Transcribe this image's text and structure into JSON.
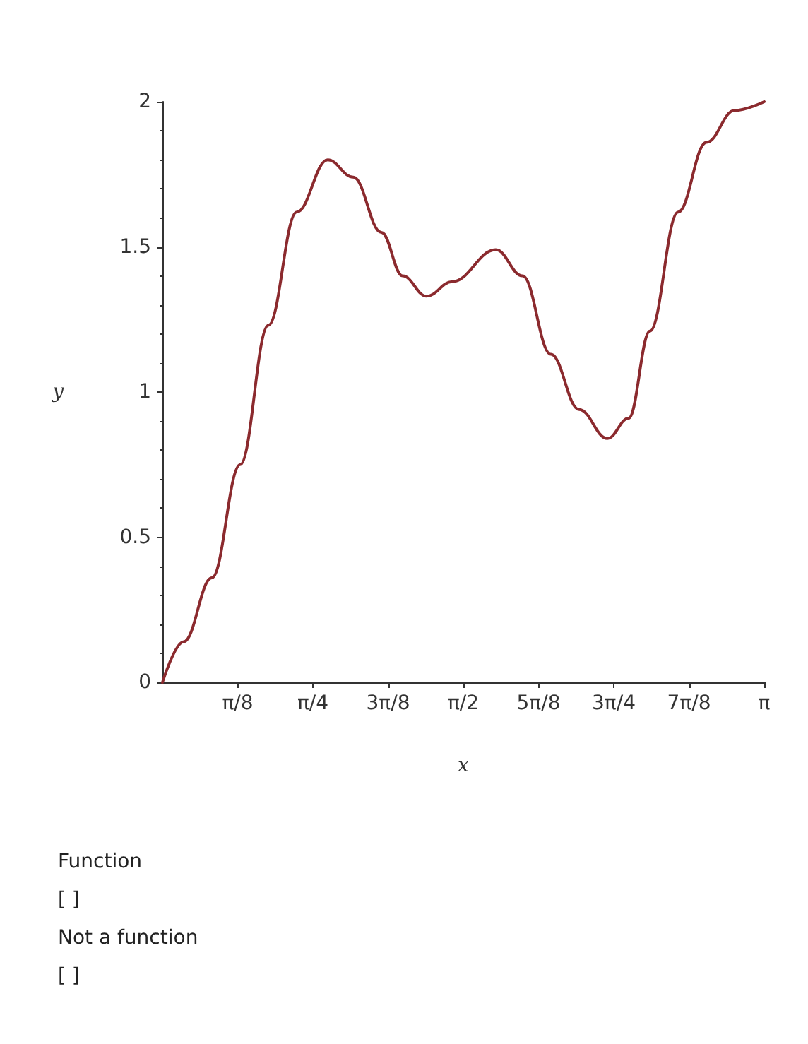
{
  "chart_data": {
    "type": "line",
    "xlabel": "x",
    "ylabel": "y",
    "x": [
      0,
      0.111,
      0.258,
      0.406,
      0.553,
      0.701,
      0.863,
      0.996,
      1.143,
      1.254,
      1.379,
      1.512,
      1.74,
      1.88,
      2.028,
      2.175,
      2.323,
      2.434,
      2.545,
      2.692,
      2.84,
      2.987,
      3.1416
    ],
    "series": [
      {
        "color": "#8b2a2e",
        "values": [
          0,
          0.14,
          0.36,
          0.75,
          1.23,
          1.62,
          1.8,
          1.74,
          1.55,
          1.4,
          1.33,
          1.38,
          1.49,
          1.4,
          1.13,
          0.94,
          0.84,
          0.91,
          1.21,
          1.62,
          1.86,
          1.97,
          2.0
        ]
      }
    ],
    "xlim": [
      0,
      3.1416
    ],
    "xticks": [
      {
        "value": 0.3927,
        "label": "π/8"
      },
      {
        "value": 0.7854,
        "label": "π/4"
      },
      {
        "value": 1.1781,
        "label": "3π/8"
      },
      {
        "value": 1.5708,
        "label": "π/2"
      },
      {
        "value": 1.9635,
        "label": "5π/8"
      },
      {
        "value": 2.3562,
        "label": "3π/4"
      },
      {
        "value": 2.7489,
        "label": "7π/8"
      },
      {
        "value": 3.1416,
        "label": "π"
      }
    ],
    "ylim": [
      0,
      2
    ],
    "yticks": [
      0,
      0.5,
      1,
      1.5,
      2
    ],
    "grid": false,
    "marker": "none",
    "line_style": "solid",
    "annotations": [
      "Function",
      "[ ]",
      "Not a function",
      "[ ]"
    ]
  }
}
